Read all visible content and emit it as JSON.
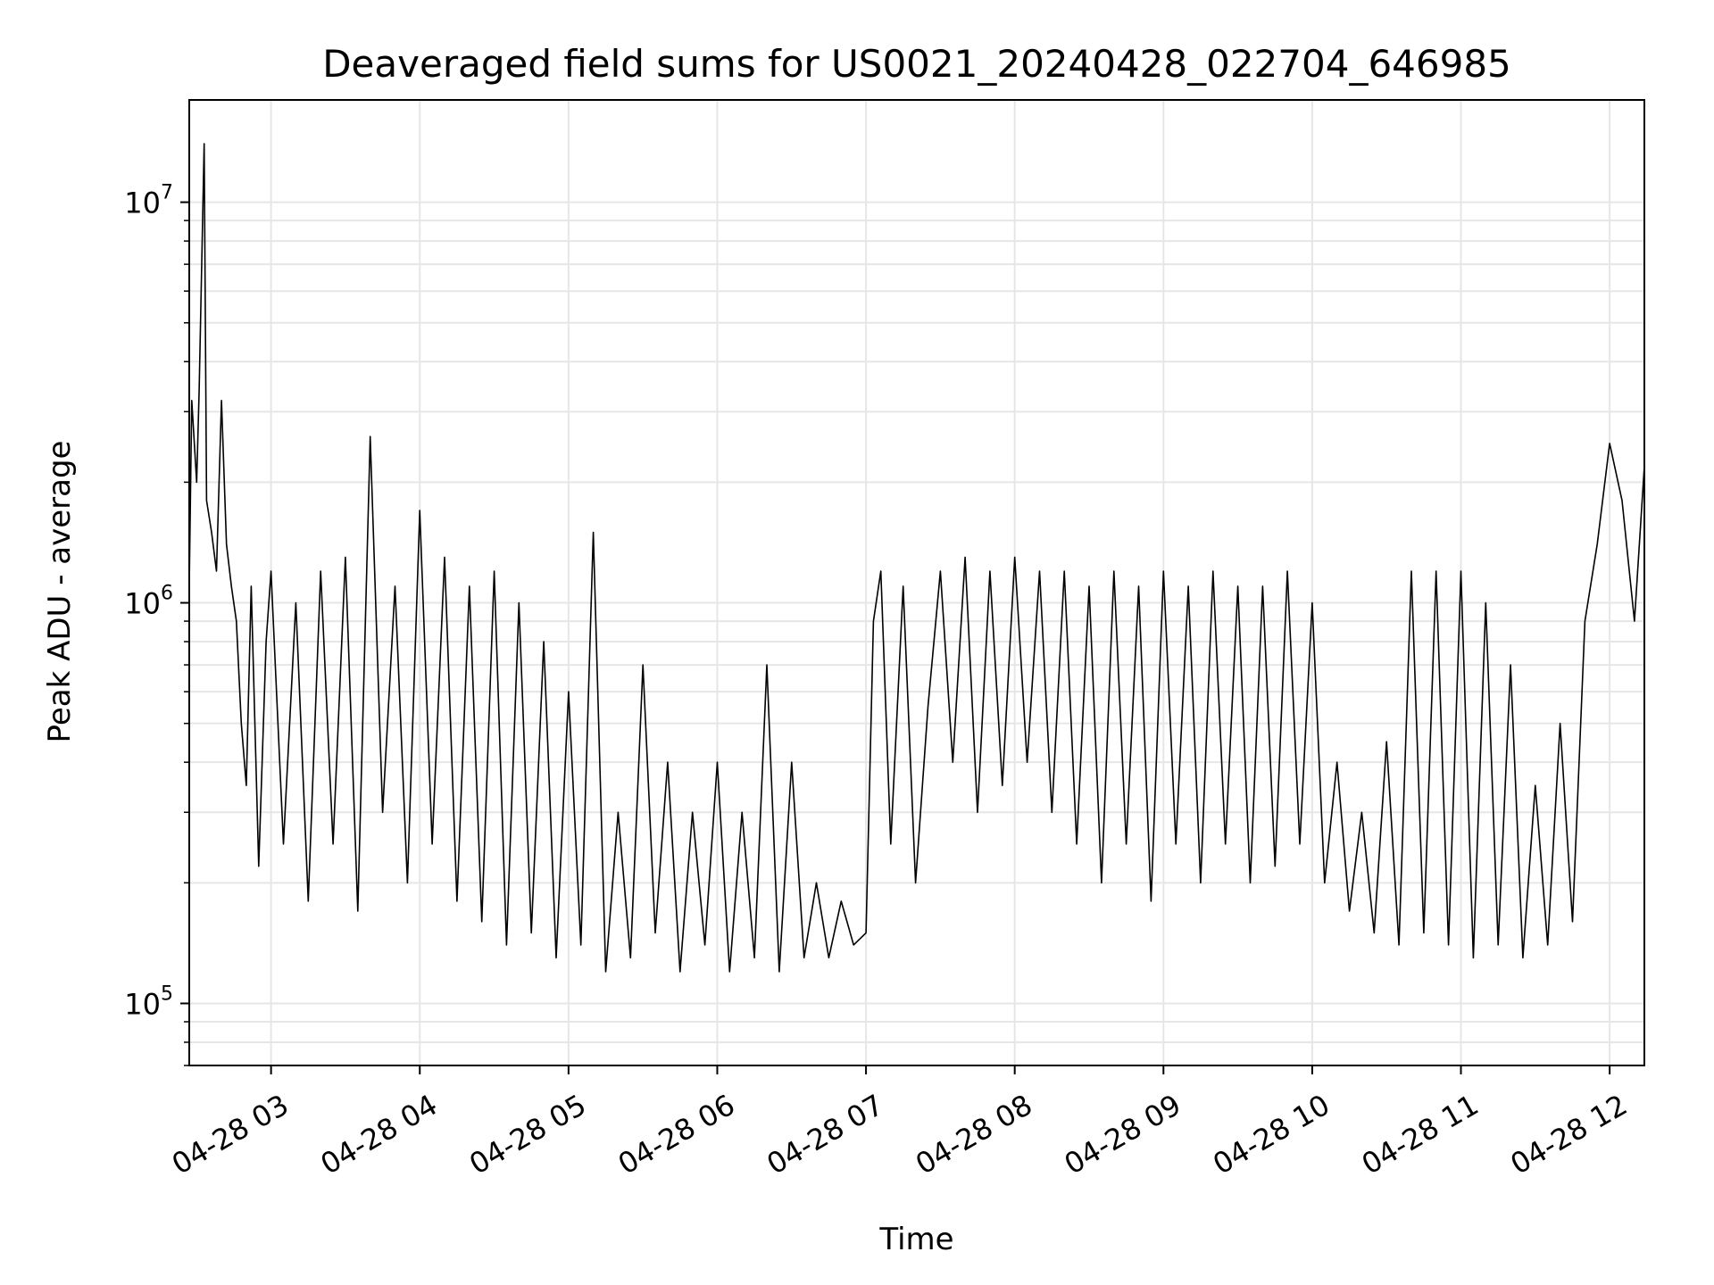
{
  "chart_data": {
    "type": "line",
    "title": "Deaveraged field sums for US0021_20240428_022704_646985",
    "xlabel": "Time",
    "ylabel": "Peak ADU - average",
    "yscale": "log",
    "ylim": [
      70000,
      18000000
    ],
    "xlim": [
      "04-28 02:27",
      "04-28 12:14"
    ],
    "grid": true,
    "line_color": "#000000",
    "grid_color": "#e6e6e6",
    "x_ticks": [
      {
        "x": "04-28 03:00",
        "label": "04-28 03"
      },
      {
        "x": "04-28 04:00",
        "label": "04-28 04"
      },
      {
        "x": "04-28 05:00",
        "label": "04-28 05"
      },
      {
        "x": "04-28 06:00",
        "label": "04-28 06"
      },
      {
        "x": "04-28 07:00",
        "label": "04-28 07"
      },
      {
        "x": "04-28 08:00",
        "label": "04-28 08"
      },
      {
        "x": "04-28 09:00",
        "label": "04-28 09"
      },
      {
        "x": "04-28 10:00",
        "label": "04-28 10"
      },
      {
        "x": "04-28 11:00",
        "label": "04-28 11"
      },
      {
        "x": "04-28 12:00",
        "label": "04-28 12"
      }
    ],
    "y_ticks": [
      {
        "y": 100000,
        "base": "10",
        "exp": "5"
      },
      {
        "y": 1000000,
        "base": "10",
        "exp": "6"
      },
      {
        "y": 10000000,
        "base": "10",
        "exp": "7"
      }
    ],
    "series": [
      {
        "x": [
          "04-28 02:27",
          "04-28 02:28",
          "04-28 02:30",
          "04-28 02:31",
          "04-28 02:33",
          "04-28 02:34",
          "04-28 02:36",
          "04-28 02:38",
          "04-28 02:40",
          "04-28 02:42",
          "04-28 02:44",
          "04-28 02:46",
          "04-28 02:48",
          "04-28 02:50",
          "04-28 02:52",
          "04-28 02:55",
          "04-28 02:58",
          "04-28 03:00",
          "04-28 03:05",
          "04-28 03:10",
          "04-28 03:15",
          "04-28 03:20",
          "04-28 03:25",
          "04-28 03:30",
          "04-28 03:35",
          "04-28 03:40",
          "04-28 03:45",
          "04-28 03:50",
          "04-28 03:55",
          "04-28 04:00",
          "04-28 04:05",
          "04-28 04:10",
          "04-28 04:15",
          "04-28 04:20",
          "04-28 04:25",
          "04-28 04:30",
          "04-28 04:35",
          "04-28 04:40",
          "04-28 04:45",
          "04-28 04:50",
          "04-28 04:55",
          "04-28 05:00",
          "04-28 05:05",
          "04-28 05:10",
          "04-28 05:15",
          "04-28 05:20",
          "04-28 05:25",
          "04-28 05:30",
          "04-28 05:35",
          "04-28 05:40",
          "04-28 05:45",
          "04-28 05:50",
          "04-28 05:55",
          "04-28 06:00",
          "04-28 06:05",
          "04-28 06:10",
          "04-28 06:15",
          "04-28 06:20",
          "04-28 06:25",
          "04-28 06:30",
          "04-28 06:35",
          "04-28 06:40",
          "04-28 06:45",
          "04-28 06:50",
          "04-28 06:55",
          "04-28 07:00",
          "04-28 07:03",
          "04-28 07:06",
          "04-28 07:10",
          "04-28 07:15",
          "04-28 07:20",
          "04-28 07:25",
          "04-28 07:30",
          "04-28 07:35",
          "04-28 07:40",
          "04-28 07:45",
          "04-28 07:50",
          "04-28 07:55",
          "04-28 08:00",
          "04-28 08:05",
          "04-28 08:10",
          "04-28 08:15",
          "04-28 08:20",
          "04-28 08:25",
          "04-28 08:30",
          "04-28 08:35",
          "04-28 08:40",
          "04-28 08:45",
          "04-28 08:50",
          "04-28 08:55",
          "04-28 09:00",
          "04-28 09:05",
          "04-28 09:10",
          "04-28 09:15",
          "04-28 09:20",
          "04-28 09:25",
          "04-28 09:30",
          "04-28 09:35",
          "04-28 09:40",
          "04-28 09:45",
          "04-28 09:50",
          "04-28 09:55",
          "04-28 10:00",
          "04-28 10:05",
          "04-28 10:10",
          "04-28 10:15",
          "04-28 10:20",
          "04-28 10:25",
          "04-28 10:30",
          "04-28 10:35",
          "04-28 10:40",
          "04-28 10:45",
          "04-28 10:50",
          "04-28 10:55",
          "04-28 11:00",
          "04-28 11:05",
          "04-28 11:10",
          "04-28 11:15",
          "04-28 11:20",
          "04-28 11:25",
          "04-28 11:30",
          "04-28 11:35",
          "04-28 11:40",
          "04-28 11:45",
          "04-28 11:50",
          "04-28 11:55",
          "04-28 12:00",
          "04-28 12:05",
          "04-28 12:10",
          "04-28 12:14"
        ],
        "y": [
          1100000,
          3200000,
          2000000,
          3400000,
          14000000,
          1800000,
          1500000,
          1200000,
          3200000,
          1400000,
          1100000,
          900000,
          500000,
          350000,
          1100000,
          220000,
          800000,
          1200000,
          250000,
          1000000,
          180000,
          1200000,
          250000,
          1300000,
          170000,
          2600000,
          300000,
          1100000,
          200000,
          1700000,
          250000,
          1300000,
          180000,
          1100000,
          160000,
          1200000,
          140000,
          1000000,
          150000,
          800000,
          130000,
          600000,
          140000,
          1500000,
          120000,
          300000,
          130000,
          700000,
          150000,
          400000,
          120000,
          300000,
          140000,
          400000,
          120000,
          300000,
          130000,
          700000,
          120000,
          400000,
          130000,
          200000,
          130000,
          180000,
          140000,
          150000,
          900000,
          1200000,
          250000,
          1100000,
          200000,
          550000,
          1200000,
          400000,
          1300000,
          300000,
          1200000,
          350000,
          1300000,
          400000,
          1200000,
          300000,
          1200000,
          250000,
          1100000,
          200000,
          1200000,
          250000,
          1100000,
          180000,
          1200000,
          250000,
          1100000,
          200000,
          1200000,
          250000,
          1100000,
          200000,
          1100000,
          220000,
          1200000,
          250000,
          1000000,
          200000,
          400000,
          170000,
          300000,
          150000,
          450000,
          140000,
          1200000,
          150000,
          1200000,
          140000,
          1200000,
          130000,
          1000000,
          140000,
          700000,
          130000,
          350000,
          140000,
          500000,
          160000,
          900000,
          1400000,
          2500000,
          1800000,
          900000,
          2200000
        ]
      }
    ]
  }
}
